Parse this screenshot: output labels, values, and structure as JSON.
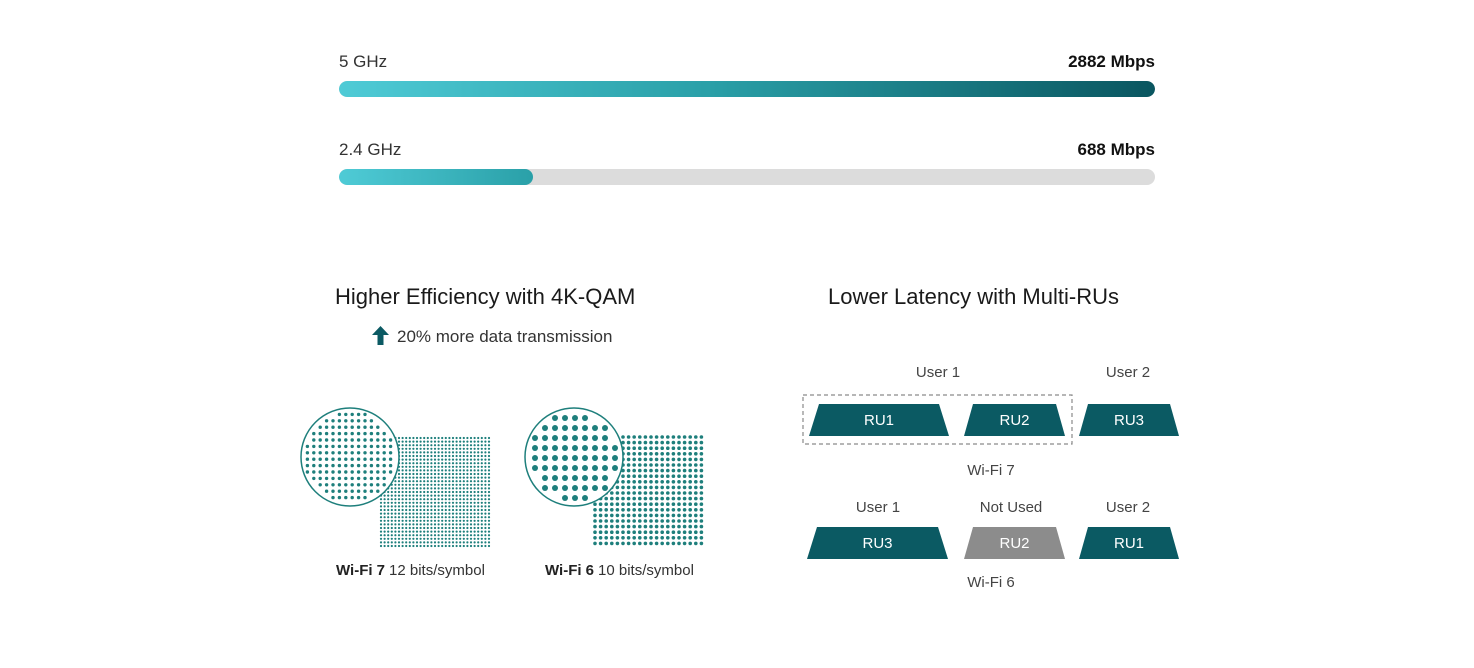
{
  "speed_bars": [
    {
      "band": "5 GHz",
      "speed": "2882 Mbps",
      "fill_fraction": 1.0
    },
    {
      "band": "2.4 GHz",
      "speed": "688 Mbps",
      "fill_fraction": 0.238
    }
  ],
  "qam": {
    "title": "Higher Efficiency with 4K-QAM",
    "note": "20% more data transmission",
    "items": [
      {
        "name": "Wi-Fi 7",
        "detail": "12 bits/symbol"
      },
      {
        "name": "Wi-Fi 6",
        "detail": "10 bits/symbol"
      }
    ]
  },
  "multi_ru": {
    "title": "Lower Latency with Multi-RUs",
    "wifi7": {
      "label": "Wi-Fi 7",
      "user1": "User 1",
      "user2": "User 2",
      "units": [
        "RU1",
        "RU2",
        "RU3"
      ]
    },
    "wifi6": {
      "label": "Wi-Fi 6",
      "user1": "User 1",
      "not_used": "Not Used",
      "user2": "User 2",
      "units": [
        "RU3",
        "RU2",
        "RU1"
      ]
    }
  },
  "colors": {
    "accent_dark": "#0b5a63",
    "accent_light": "#4fcbd6",
    "dot": "#1e7f7c",
    "unused": "#8c8c8c",
    "track": "#dcdcdc"
  }
}
